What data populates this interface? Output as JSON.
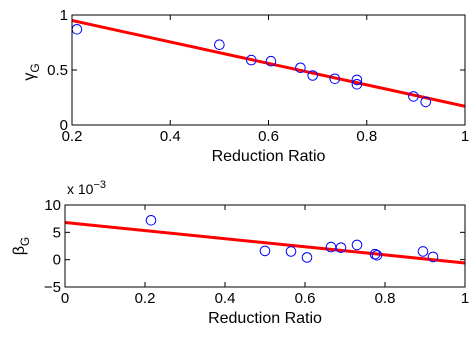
{
  "chart_data": [
    {
      "type": "scatter",
      "xlabel": "Reduction Ratio",
      "ylabel": "γ",
      "ylabel_sub": "G",
      "xlim": [
        0.2,
        1
      ],
      "ylim": [
        0,
        1
      ],
      "xticks": [
        "0.2",
        "0.4",
        "0.6",
        "0.8",
        "1"
      ],
      "xtick_values": [
        0.2,
        0.4,
        0.6,
        0.8,
        1.0
      ],
      "yticks": [
        "0",
        "0.5",
        "1"
      ],
      "ytick_values": [
        0,
        0.5,
        1
      ],
      "points": [
        {
          "x": 0.21,
          "y": 0.87
        },
        {
          "x": 0.5,
          "y": 0.73
        },
        {
          "x": 0.565,
          "y": 0.59
        },
        {
          "x": 0.605,
          "y": 0.58
        },
        {
          "x": 0.665,
          "y": 0.52
        },
        {
          "x": 0.69,
          "y": 0.45
        },
        {
          "x": 0.735,
          "y": 0.42
        },
        {
          "x": 0.78,
          "y": 0.41
        },
        {
          "x": 0.78,
          "y": 0.37
        },
        {
          "x": 0.895,
          "y": 0.26
        },
        {
          "x": 0.92,
          "y": 0.21
        }
      ],
      "fit_line": {
        "x": [
          0.2,
          1.0
        ],
        "y": [
          0.95,
          0.17
        ]
      },
      "point_color": "#0000ff",
      "line_color": "#ff0000"
    },
    {
      "type": "scatter",
      "xlabel": "Reduction Ratio",
      "ylabel": "β",
      "ylabel_sub": "G",
      "y_exponent_base": "x 10",
      "y_exponent_power": "−3",
      "xlim": [
        0,
        1
      ],
      "ylim": [
        -5,
        10
      ],
      "xticks": [
        "0",
        "0.2",
        "0.4",
        "0.6",
        "0.8",
        "1"
      ],
      "xtick_values": [
        0,
        0.2,
        0.4,
        0.6,
        0.8,
        1.0
      ],
      "yticks": [
        "−5",
        "0",
        "5",
        "10"
      ],
      "ytick_values": [
        -5,
        0,
        5,
        10
      ],
      "points": [
        {
          "x": 0.215,
          "y": 7.2
        },
        {
          "x": 0.5,
          "y": 1.6
        },
        {
          "x": 0.565,
          "y": 1.5
        },
        {
          "x": 0.605,
          "y": 0.4
        },
        {
          "x": 0.665,
          "y": 2.3
        },
        {
          "x": 0.69,
          "y": 2.2
        },
        {
          "x": 0.73,
          "y": 2.7
        },
        {
          "x": 0.775,
          "y": 1.0
        },
        {
          "x": 0.78,
          "y": 0.8
        },
        {
          "x": 0.895,
          "y": 1.5
        },
        {
          "x": 0.92,
          "y": 0.5
        }
      ],
      "fit_line": {
        "x": [
          0.0,
          1.0
        ],
        "y": [
          6.8,
          -0.6
        ]
      },
      "point_color": "#0000ff",
      "line_color": "#ff0000"
    }
  ]
}
